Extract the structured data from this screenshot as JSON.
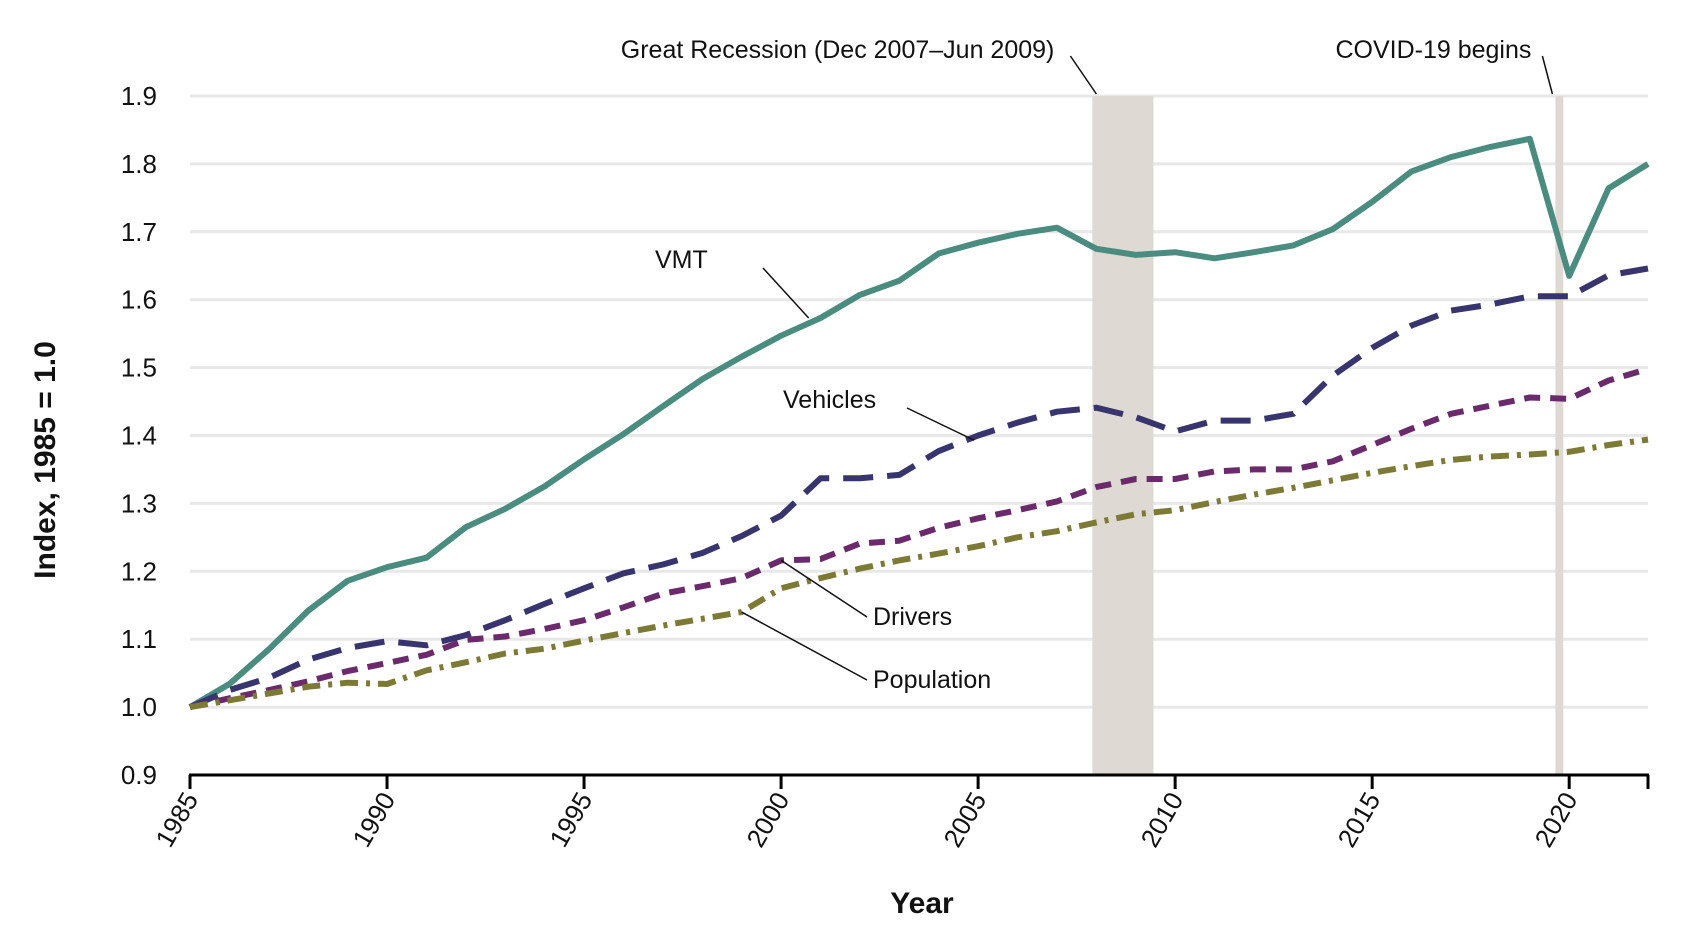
{
  "chart_data": {
    "type": "line",
    "xlabel": "Year",
    "ylabel": "Index, 1985 = 1.0",
    "xlim": [
      1985,
      2022
    ],
    "ylim": [
      0.9,
      1.9
    ],
    "x_ticks": [
      "1985",
      "1990",
      "1995",
      "2000",
      "2005",
      "2010",
      "2015",
      "2020"
    ],
    "y_ticks": [
      "0.9",
      "1.0",
      "1.1",
      "1.2",
      "1.3",
      "1.4",
      "1.5",
      "1.6",
      "1.7",
      "1.8",
      "1.9"
    ],
    "grid": "horizontal",
    "x": [
      1985,
      1986,
      1987,
      1988,
      1989,
      1990,
      1991,
      1992,
      1993,
      1994,
      1995,
      1996,
      1997,
      1998,
      1999,
      2000,
      2001,
      2002,
      2003,
      2004,
      2005,
      2006,
      2007,
      2008,
      2009,
      2010,
      2011,
      2012,
      2013,
      2014,
      2015,
      2016,
      2017,
      2018,
      2019,
      2020,
      2021,
      2022
    ],
    "series": [
      {
        "name": "VMT",
        "color": "#4a8c80",
        "dash": "solid",
        "values": [
          1.0,
          1.034,
          1.085,
          1.142,
          1.186,
          1.206,
          1.22,
          1.265,
          1.292,
          1.325,
          1.365,
          1.402,
          1.443,
          1.483,
          1.516,
          1.547,
          1.573,
          1.607,
          1.628,
          1.668,
          1.684,
          1.697,
          1.706,
          1.675,
          1.666,
          1.67,
          1.661,
          1.67,
          1.68,
          1.704,
          1.744,
          1.789,
          1.81,
          1.825,
          1.837,
          1.635,
          1.764,
          1.8
        ]
      },
      {
        "name": "Vehicles",
        "color": "#37346e",
        "dash": "dashed",
        "values": [
          1.0,
          1.025,
          1.043,
          1.07,
          1.087,
          1.097,
          1.091,
          1.106,
          1.128,
          1.152,
          1.175,
          1.197,
          1.21,
          1.227,
          1.252,
          1.282,
          1.337,
          1.337,
          1.342,
          1.377,
          1.4,
          1.419,
          1.435,
          1.441,
          1.427,
          1.406,
          1.422,
          1.422,
          1.432,
          1.488,
          1.529,
          1.562,
          1.584,
          1.593,
          1.605,
          1.605,
          1.636,
          1.646
        ]
      },
      {
        "name": "Drivers",
        "color": "#6b2a6b",
        "dash": "short-dashed",
        "values": [
          1.0,
          1.013,
          1.025,
          1.038,
          1.053,
          1.065,
          1.077,
          1.099,
          1.104,
          1.115,
          1.128,
          1.147,
          1.167,
          1.178,
          1.19,
          1.216,
          1.218,
          1.241,
          1.245,
          1.264,
          1.278,
          1.29,
          1.303,
          1.324,
          1.336,
          1.336,
          1.347,
          1.35,
          1.35,
          1.362,
          1.386,
          1.41,
          1.432,
          1.444,
          1.456,
          1.454,
          1.481,
          1.498
        ]
      },
      {
        "name": "Population",
        "color": "#7d7a35",
        "dash": "dash-dot",
        "values": [
          1.0,
          1.01,
          1.02,
          1.03,
          1.036,
          1.034,
          1.054,
          1.066,
          1.079,
          1.086,
          1.098,
          1.109,
          1.12,
          1.13,
          1.14,
          1.175,
          1.19,
          1.204,
          1.216,
          1.226,
          1.237,
          1.25,
          1.259,
          1.272,
          1.284,
          1.29,
          1.302,
          1.313,
          1.323,
          1.334,
          1.345,
          1.355,
          1.364,
          1.369,
          1.372,
          1.376,
          1.386,
          1.394
        ]
      }
    ],
    "shaded_periods": [
      {
        "label": "Great Recession (Dec 2007–Jun 2009)",
        "start": 2007.9,
        "end": 2009.45,
        "color": "#dedad3"
      },
      {
        "label": "COVID-19 begins",
        "start": 2019.65,
        "end": 2019.85,
        "color": "#dedad3"
      }
    ],
    "series_labels": [
      {
        "text": "VMT",
        "anchor_x": 2000.7,
        "anchor_y": 1.573
      },
      {
        "text": "Vehicles",
        "anchor_x": 2004.9,
        "anchor_y": 1.393
      },
      {
        "text": "Drivers",
        "anchor_x": 2000.0,
        "anchor_y": 1.216
      },
      {
        "text": "Population",
        "anchor_x": 1999.0,
        "anchor_y": 1.14
      }
    ]
  }
}
